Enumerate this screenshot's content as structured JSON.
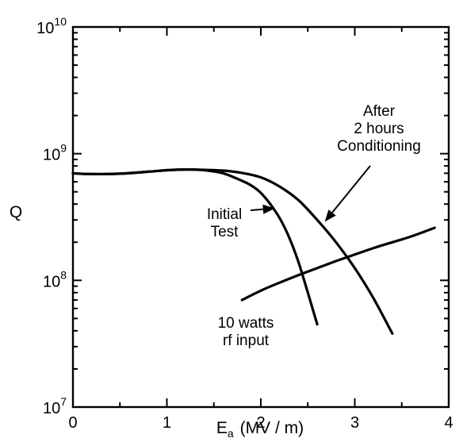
{
  "chart_data": {
    "type": "line",
    "title": "",
    "xlabel": "E",
    "xlabel_sub": "a",
    "xlabel_unit": "(MV / m)",
    "ylabel": "Q",
    "xlim": [
      0,
      4
    ],
    "ylim": [
      10000000,
      10000000000
    ],
    "y_scale": "log",
    "x_ticks": [
      0,
      1,
      2,
      3,
      4
    ],
    "x_tick_labels": [
      "0",
      "1",
      "2",
      "3",
      "4"
    ],
    "y_ticks": [
      10000000,
      100000000,
      1000000000,
      10000000000
    ],
    "y_tick_labels": [
      {
        "base": "10",
        "exp": "7"
      },
      {
        "base": "10",
        "exp": "8"
      },
      {
        "base": "10",
        "exp": "9"
      },
      {
        "base": "10",
        "exp": "10"
      }
    ],
    "grid": false,
    "legend": "none",
    "series": [
      {
        "label_lines": [
          "Initial",
          "Test"
        ],
        "x": [
          0,
          0.2,
          0.5,
          0.8,
          1.0,
          1.2,
          1.4,
          1.6,
          1.8,
          1.9,
          2.0,
          2.1,
          2.2,
          2.3,
          2.4,
          2.5,
          2.6
        ],
        "y": [
          700000000,
          690000000,
          695000000,
          720000000,
          740000000,
          750000000,
          740000000,
          700000000,
          610000000,
          560000000,
          490000000,
          400000000,
          310000000,
          220000000,
          140000000,
          80000000,
          45000000
        ]
      },
      {
        "label_lines": [
          "After",
          "2 hours",
          "Conditioning"
        ],
        "x": [
          0,
          0.2,
          0.5,
          0.8,
          1.0,
          1.2,
          1.4,
          1.6,
          1.8,
          2.0,
          2.2,
          2.4,
          2.6,
          2.8,
          3.0,
          3.2,
          3.4
        ],
        "y": [
          700000000,
          690000000,
          695000000,
          720000000,
          740000000,
          750000000,
          745000000,
          735000000,
          705000000,
          650000000,
          550000000,
          430000000,
          300000000,
          200000000,
          125000000,
          72000000,
          38000000
        ]
      },
      {
        "label_lines": [
          "10 watts",
          "rf input"
        ],
        "x": [
          1.8,
          2.0,
          2.2,
          2.4,
          2.6,
          2.8,
          3.0,
          3.2,
          3.4,
          3.6,
          3.85
        ],
        "y": [
          70000000,
          83000000,
          96000000,
          110000000,
          125000000,
          142000000,
          160000000,
          180000000,
          200000000,
          222000000,
          260000000
        ]
      }
    ],
    "annotations": [
      {
        "lines": [
          "After",
          "2 hours",
          "Conditioning"
        ],
        "arrow_to": {
          "x": 2.68,
          "y": 290000000
        }
      },
      {
        "lines": [
          "Initial",
          "Test"
        ],
        "arrow_to": {
          "x": 2.15,
          "y": 370000000
        }
      },
      {
        "lines": [
          "10 watts",
          "rf input"
        ]
      }
    ]
  }
}
